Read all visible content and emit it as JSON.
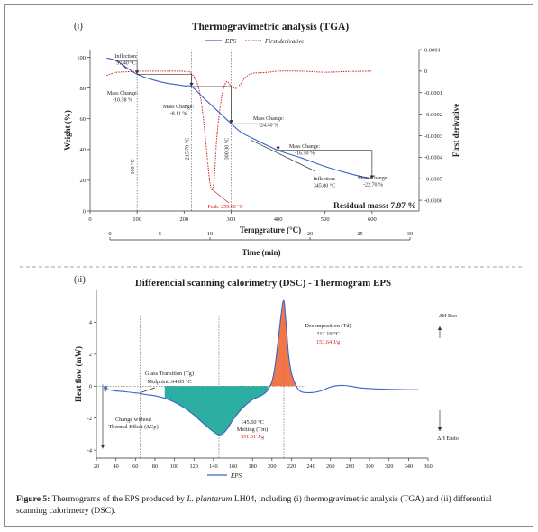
{
  "chart_data": [
    {
      "type": "line",
      "panel_label": "(i)",
      "title": "Thermogravimetric analysis (TGA)",
      "xlabel": "Temperature (°C)",
      "ylabel": "Weight (%)",
      "y2label": "First derivative",
      "xlim": [
        0,
        700
      ],
      "ylim": [
        0,
        105
      ],
      "y2lim": [
        -0.00065,
        0.0001
      ],
      "x_ticks": [
        "0",
        "100",
        "200",
        "300",
        "400",
        "500",
        "600"
      ],
      "y_ticks": [
        "0",
        "20",
        "40",
        "60",
        "80",
        "100"
      ],
      "y2_ticks": [
        "0.0001",
        "0",
        "-0.0001",
        "-0.0002",
        "-0.0003",
        "-0.0004",
        "-0.0005",
        "-0.0006"
      ],
      "time_axis": {
        "label": "Time (min)",
        "ticks": [
          "0",
          "5",
          "10",
          "15",
          "20",
          "25",
          "30"
        ]
      },
      "legend": [
        "EPS",
        "First derivative"
      ],
      "series": [
        {
          "name": "EPS",
          "color": "#3a63c8",
          "x": [
            35,
            57.4,
            100,
            150,
            200,
            215.7,
            240,
            270,
            300.3,
            320,
            345.8,
            400,
            450,
            500,
            550,
            600
          ],
          "y": [
            99.5,
            97.5,
            89,
            84,
            81.5,
            81,
            74,
            65.5,
            56.8,
            51.5,
            47.3,
            39.5,
            34.5,
            29,
            24.5,
            20.8
          ]
        },
        {
          "name": "First derivative",
          "color": "#d42020",
          "x": [
            35,
            50,
            57.4,
            70,
            100,
            150,
            200,
            215,
            230,
            240,
            250,
            255,
            259.6,
            264,
            270,
            280,
            290,
            300,
            310,
            320,
            330,
            345,
            360,
            380,
            400,
            450,
            500,
            550,
            600
          ],
          "y": [
            -2e-05,
            -8e-06,
            -5e-06,
            -4e-06,
            -1e-06,
            0,
            -1e-06,
            -1e-05,
            -7e-05,
            -0.0002,
            -0.00042,
            -0.00052,
            -0.00055,
            -0.0005,
            -0.0003,
            -0.00012,
            -5e-05,
            -7e-05,
            -8e-05,
            -6e-05,
            -3e-05,
            -1e-05,
            -8e-06,
            -5e-06,
            0,
            0,
            -5e-06,
            -2e-06,
            0
          ]
        }
      ],
      "vlines": [
        {
          "x": 100,
          "label": "100 °C"
        },
        {
          "x": 215.7,
          "label": "215.70 °C"
        },
        {
          "x": 300.3,
          "label": "300.30 °C"
        }
      ],
      "annotations": [
        {
          "text": [
            "Inflection:",
            "57.40 °C"
          ]
        },
        {
          "text": [
            "Mass Change:",
            "-10.58 %"
          ]
        },
        {
          "text": [
            "Mass Change:",
            "-8.11 %"
          ]
        },
        {
          "text": [
            "Mass Change:",
            "-24.40 %"
          ]
        },
        {
          "text": [
            "Mass Change:",
            "-16.50 %"
          ]
        },
        {
          "text": [
            "Inflection:",
            "345.80 °C"
          ]
        },
        {
          "text": [
            "Mass Change:",
            "-22.70 %"
          ]
        },
        {
          "text": [
            "Peak: 259.60 °C"
          ]
        },
        {
          "text": [
            "Residual mass: 7.97 %"
          ]
        }
      ]
    },
    {
      "type": "line",
      "panel_label": "(ii)",
      "title": "Differencial scanning calorimetry (DSC) - Thermogram EPS",
      "xlabel": "Temperature (°C)",
      "ylabel": "Heat flow (mW)",
      "xlim": [
        20,
        360
      ],
      "ylim": [
        -4.5,
        6
      ],
      "x_ticks": [
        "20",
        "40",
        "60",
        "80",
        "100",
        "120",
        "140",
        "160",
        "180",
        "200",
        "220",
        "240",
        "260",
        "280",
        "300",
        "320",
        "340",
        "360"
      ],
      "y_ticks": [
        "4",
        "2",
        "0",
        "-2",
        "-4"
      ],
      "legend": [
        "EPS"
      ],
      "series": [
        {
          "name": "EPS",
          "color": "#3a63c8",
          "x": [
            28,
            29,
            30,
            31,
            32,
            35,
            40,
            50,
            60,
            64.85,
            70,
            80,
            90,
            100,
            110,
            120,
            130,
            140,
            145.6,
            150,
            155,
            160,
            170,
            180,
            190,
            195,
            200,
            203,
            206,
            209,
            211,
            212.19,
            213,
            215,
            217,
            220,
            225,
            230,
            240,
            250,
            260,
            270,
            280,
            290,
            300,
            320,
            340,
            350
          ],
          "y": [
            0,
            -0.4,
            0,
            -0.2,
            -0.22,
            -0.25,
            -0.3,
            -0.35,
            -0.42,
            -0.45,
            -0.52,
            -0.6,
            -0.75,
            -1.0,
            -1.35,
            -1.8,
            -2.35,
            -2.85,
            -3.05,
            -2.95,
            -2.6,
            -2.1,
            -1.35,
            -0.85,
            -0.55,
            -0.3,
            0.3,
            1.2,
            2.7,
            4.3,
            5.2,
            5.35,
            5.0,
            3.5,
            2.0,
            0.8,
            0.0,
            -0.35,
            -0.4,
            -0.3,
            -0.05,
            0.05,
            0.0,
            -0.1,
            -0.15,
            -0.2,
            -0.22,
            -0.22
          ]
        }
      ],
      "vlines": [
        {
          "x": 64.85
        },
        {
          "x": 145.6
        },
        {
          "x": 212.19
        }
      ],
      "annotations": [
        {
          "text": [
            "Decomposition (Td)",
            "212.19 °C",
            "153.64 J/g"
          ],
          "colors": [
            "#222222",
            "#222222",
            "#d42020"
          ]
        },
        {
          "text": [
            "Glass Transition (Tg)",
            "Midpoint :64.85 °C"
          ]
        },
        {
          "text": [
            "Change without",
            "Thermal Effect (ΔCp)"
          ]
        },
        {
          "text": [
            "145.60 °C",
            "Melting (Tm)",
            "351.51 J/g"
          ],
          "colors": [
            "#222222",
            "#222222",
            "#d42020"
          ]
        },
        {
          "text": [
            "ΔH Exo"
          ]
        },
        {
          "text": [
            "ΔH Endo"
          ]
        }
      ],
      "fill_colors": {
        "melting": "#1aa89a",
        "decomposition": "#f06a3a"
      }
    }
  ],
  "caption": {
    "label": "Figure 5:",
    "text_before": " Thermograms of the EPS produced by ",
    "species": "L. plantarum",
    "text_after": " LH04, including (i) thermogravimetric analysis (TGA) and (ii) differential scanning calorimetry (DSC)."
  }
}
